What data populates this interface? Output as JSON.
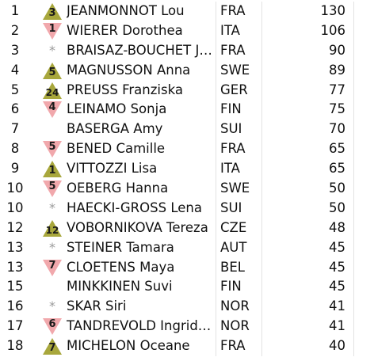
{
  "colors": {
    "up_triangle": "#a8a73c",
    "down_triangle": "#f1a8ac",
    "text": "#111111",
    "new_marker": "#9a9a9a"
  },
  "standings": [
    {
      "rank": "1",
      "move_type": "up",
      "move": "3",
      "name": "JEANMONNOT Lou",
      "nation": "FRA",
      "points": "130"
    },
    {
      "rank": "2",
      "move_type": "down",
      "move": "1",
      "name": "WIERER Dorothea",
      "nation": "ITA",
      "points": "106"
    },
    {
      "rank": "3",
      "move_type": "new",
      "move": "*",
      "name": "BRAISAZ-BOUCHET Ju…",
      "nation": "FRA",
      "points": "90"
    },
    {
      "rank": "4",
      "move_type": "up",
      "move": "5",
      "name": "MAGNUSSON Anna",
      "nation": "SWE",
      "points": "89"
    },
    {
      "rank": "5",
      "move_type": "up",
      "move": "24",
      "name": "PREUSS Franziska",
      "nation": "GER",
      "points": "77"
    },
    {
      "rank": "6",
      "move_type": "down",
      "move": "4",
      "name": "LEINAMO Sonja",
      "nation": "FIN",
      "points": "75"
    },
    {
      "rank": "7",
      "move_type": "none",
      "move": "",
      "name": "BASERGA Amy",
      "nation": "SUI",
      "points": "70"
    },
    {
      "rank": "8",
      "move_type": "down",
      "move": "5",
      "name": "BENED Camille",
      "nation": "FRA",
      "points": "65"
    },
    {
      "rank": "9",
      "move_type": "up",
      "move": "1",
      "name": "VITTOZZI Lisa",
      "nation": "ITA",
      "points": "65"
    },
    {
      "rank": "10",
      "move_type": "down",
      "move": "5",
      "name": "OEBERG Hanna",
      "nation": "SWE",
      "points": "50"
    },
    {
      "rank": "10",
      "move_type": "new",
      "move": "*",
      "name": "HAECKI-GROSS Lena",
      "nation": "SUI",
      "points": "50"
    },
    {
      "rank": "12",
      "move_type": "up",
      "move": "12",
      "name": "VOBORNIKOVA Tereza",
      "nation": "CZE",
      "points": "48"
    },
    {
      "rank": "13",
      "move_type": "new",
      "move": "*",
      "name": "STEINER Tamara",
      "nation": "AUT",
      "points": "45"
    },
    {
      "rank": "13",
      "move_type": "down",
      "move": "7",
      "name": "CLOETENS Maya",
      "nation": "BEL",
      "points": "45"
    },
    {
      "rank": "15",
      "move_type": "none",
      "move": "",
      "name": "MINKKINEN Suvi",
      "nation": "FIN",
      "points": "45"
    },
    {
      "rank": "16",
      "move_type": "new",
      "move": "*",
      "name": "SKAR Siri",
      "nation": "NOR",
      "points": "41"
    },
    {
      "rank": "17",
      "move_type": "down",
      "move": "6",
      "name": "TANDREVOLD Ingrid L…",
      "nation": "NOR",
      "points": "41"
    },
    {
      "rank": "18",
      "move_type": "up",
      "move": "7",
      "name": "MICHELON Oceane",
      "nation": "FRA",
      "points": "40"
    }
  ]
}
